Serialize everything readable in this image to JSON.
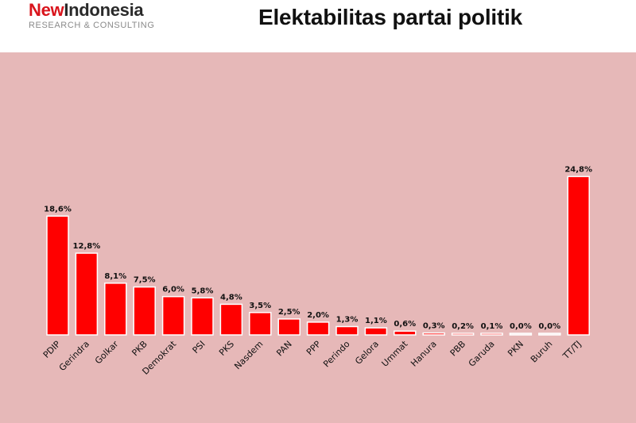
{
  "brand": {
    "name_part1": "New",
    "name_part2": "Indonesia",
    "subtitle": "RESEARCH & CONSULTING"
  },
  "page_title": "Elektabilitas partai politik",
  "colors": {
    "bar": "#ff0000",
    "panel_background": "#e6b8b8",
    "brand_red": "#d9141c"
  },
  "chart_data": {
    "type": "bar",
    "title": "",
    "xlabel": "",
    "ylabel": "",
    "ylim": [
      0,
      25
    ],
    "grid": false,
    "categories": [
      "PDIP",
      "Gerindra",
      "Golkar",
      "PKB",
      "Demokrat",
      "PSI",
      "PKS",
      "Nasdem",
      "PAN",
      "PPP",
      "Perindo",
      "Gelora",
      "Ummat",
      "Hanura",
      "PBB",
      "Garuda",
      "PKN",
      "Buruh",
      "TT/TJ"
    ],
    "values": [
      18.6,
      12.8,
      8.1,
      7.5,
      6.0,
      5.8,
      4.8,
      3.5,
      2.5,
      2.0,
      1.3,
      1.1,
      0.6,
      0.3,
      0.2,
      0.1,
      0.0,
      0.0,
      24.8
    ],
    "data_labels": [
      "18,6%",
      "12,8%",
      "8,1%",
      "7,5%",
      "6,0%",
      "5,8%",
      "4,8%",
      "3,5%",
      "2,5%",
      "2,0%",
      "1,3%",
      "1,1%",
      "0,6%",
      "0,3%",
      "0,2%",
      "0,1%",
      "0,0%",
      "0,0%",
      "24,8%"
    ]
  }
}
